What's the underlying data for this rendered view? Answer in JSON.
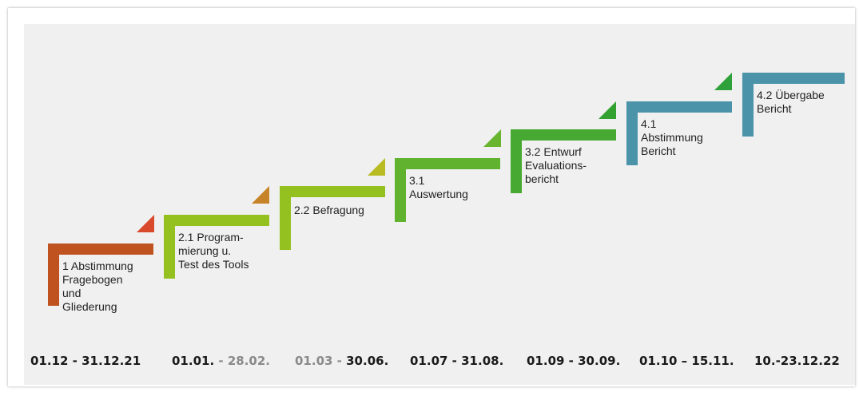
{
  "steps": [
    {
      "label": "1 Abstimmung\nFragebogen\nund\nGliederung",
      "color": "#c0521f",
      "tri_color": "#d84a2b"
    },
    {
      "label": "2.1 Program-\nmierung u.\nTest des Tools",
      "color": "#94c11f",
      "tri_color": "#c78327"
    },
    {
      "label": "2.2 Befragung",
      "color": "#94c11f",
      "tri_color": "#b8bb22"
    },
    {
      "label": "3.1\nAuswertung",
      "color": "#61b22f",
      "tri_color": "#69b52f"
    },
    {
      "label": "3.2 Entwurf\nEvaluations-\nbericht",
      "color": "#47a931",
      "tri_color": "#33a12f"
    },
    {
      "label": "4.1\nAbstimmung\nBericht",
      "color": "#4a93a8",
      "tri_color": "#2fa13a"
    },
    {
      "label": "4.2 Übergabe\nBericht",
      "color": "#4a93a8",
      "tri_color": ""
    }
  ],
  "dates": [
    {
      "a": "01.12 - 31.12.21",
      "b": ""
    },
    {
      "a": "01.01. ",
      "b": "- 28.02."
    },
    {
      "a_grey": "01.03 - ",
      "b_dark": "30.06."
    },
    {
      "a": "01.07 - 31.08.",
      "b": ""
    },
    {
      "a": "01.09 - 30.09.",
      "b": ""
    },
    {
      "a": "01.10 – 15.11.",
      "b": ""
    },
    {
      "a": "10.-23.12.22",
      "b": ""
    }
  ]
}
